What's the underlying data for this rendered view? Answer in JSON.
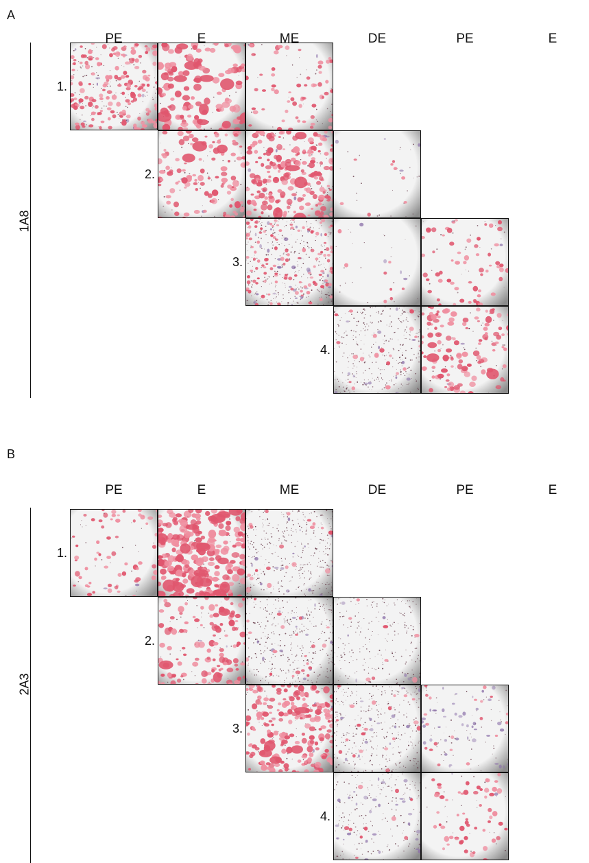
{
  "panels": [
    {
      "letter": "A",
      "side_label": "1A8",
      "column_headers": [
        "PE",
        "E",
        "ME",
        "DE",
        "PE",
        "E"
      ],
      "rows": [
        {
          "label": "1.",
          "start_col": 0,
          "tiles": [
            {
              "stain": "dense-mixed"
            },
            {
              "stain": "pink-clumps"
            },
            {
              "stain": "pink-sparse"
            }
          ]
        },
        {
          "label": "2.",
          "start_col": 1,
          "tiles": [
            {
              "stain": "pink-medium"
            },
            {
              "stain": "pink-dense"
            },
            {
              "stain": "pale-sparse"
            }
          ]
        },
        {
          "label": "3.",
          "start_col": 2,
          "tiles": [
            {
              "stain": "dense-dots-purple"
            },
            {
              "stain": "pale-sparse"
            },
            {
              "stain": "pink-sparse"
            }
          ]
        },
        {
          "label": "4.",
          "start_col": 3,
          "tiles": [
            {
              "stain": "dots-grey"
            },
            {
              "stain": "pink-medium"
            },
            {
              "stain": "pink-clumps-dense"
            }
          ]
        }
      ]
    },
    {
      "letter": "B",
      "side_label": "2A3",
      "column_headers": [
        "PE",
        "E",
        "ME",
        "DE",
        "PE",
        "E"
      ],
      "rows": [
        {
          "label": "1.",
          "start_col": 0,
          "tiles": [
            {
              "stain": "pink-sparse"
            },
            {
              "stain": "pink-clumps-dense"
            },
            {
              "stain": "dots-grey"
            }
          ]
        },
        {
          "label": "2.",
          "start_col": 1,
          "tiles": [
            {
              "stain": "pink-medium"
            },
            {
              "stain": "dots-grey"
            },
            {
              "stain": "dots-grey-sparse"
            }
          ]
        },
        {
          "label": "3.",
          "start_col": 2,
          "tiles": [
            {
              "stain": "pink-dense"
            },
            {
              "stain": "dots-grey"
            },
            {
              "stain": "purple-sparse"
            }
          ]
        },
        {
          "label": "4.",
          "start_col": 3,
          "tiles": [
            {
              "stain": "dots-purple-sparse"
            },
            {
              "stain": "pink-sparse"
            },
            {
              "stain": "pink-clumps"
            }
          ]
        }
      ]
    }
  ],
  "colors": {
    "pink": "#e0566e",
    "pink_light": "#ef8fa0",
    "purple": "#8a6fa8",
    "dark_dot": "#5a2a3a",
    "background": "#f3f3f3",
    "vignette": "#8c8c8c"
  }
}
